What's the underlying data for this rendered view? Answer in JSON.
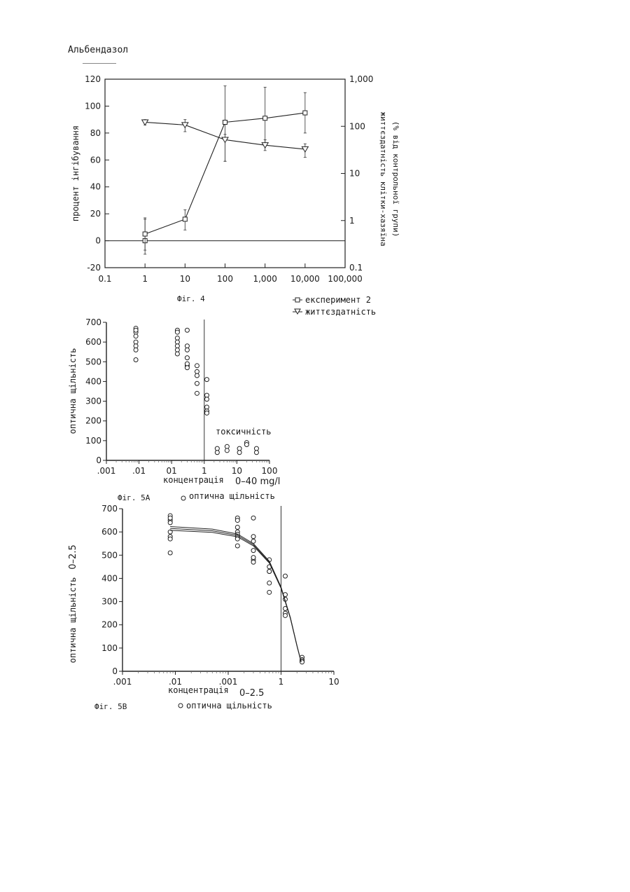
{
  "page_title": "Альбендазол",
  "chart_data": [
    {
      "type": "line",
      "caption": "Фіг. 4",
      "ylabel": "процент інгібування",
      "y2label_line1": "життєздатність клітки-хазяїна",
      "y2label_line2": "(% від контрольної групи)",
      "x_scale": "log",
      "xlim": [
        0.1,
        100000
      ],
      "x_ticks": [
        "0.1",
        "1",
        "10",
        "100",
        "1,000",
        "10,000",
        "100,000"
      ],
      "ylim": [
        -20,
        120
      ],
      "y_ticks": [
        "-20",
        "0",
        "20",
        "40",
        "60",
        "80",
        "100",
        "120"
      ],
      "y2_scale": "log",
      "y2lim": [
        0.1,
        1000
      ],
      "y2_ticks": [
        "0.1",
        "1",
        "10",
        "100",
        "1,000"
      ],
      "grid": false,
      "legend_position": "bottom-right",
      "series": [
        {
          "name": "експеримент 2",
          "marker": "square",
          "axis": "left",
          "x": [
            1,
            1,
            10,
            100,
            1000,
            10000
          ],
          "y": [
            0,
            5,
            16,
            88,
            91,
            95
          ],
          "err_low": [
            10,
            12,
            8,
            29,
            19,
            15
          ],
          "err_high": [
            16,
            12,
            7,
            27,
            23,
            15
          ]
        },
        {
          "name": "життєздатність",
          "marker": "triangle-down",
          "axis": "right",
          "x": [
            1,
            10,
            100,
            1000,
            10000
          ],
          "y": [
            110,
            95,
            46,
            32,
            27
          ],
          "y_left_equivalent": [
            88,
            86,
            75,
            71,
            68
          ],
          "err_low": [
            2,
            5,
            16,
            4,
            6
          ],
          "err_high": [
            2,
            4,
            4,
            4,
            4
          ]
        }
      ]
    },
    {
      "type": "scatter",
      "caption": "Фіг. 5А",
      "ylabel": "оптична щільність",
      "xlabel": "концентрація",
      "xlabel_range": "0–40 mg/l",
      "annotation": "токсичність",
      "x_scale": "log",
      "xlim": [
        0.001,
        100
      ],
      "x_ticks": [
        ".001",
        ".01",
        "01",
        "1",
        "10",
        "100"
      ],
      "ylim": [
        0,
        700
      ],
      "y_ticks": [
        "0",
        "100",
        "200",
        "300",
        "400",
        "500",
        "600",
        "700"
      ],
      "vertical_line_x": 1,
      "legend": "оптична щільність",
      "legend_position": "bottom",
      "series": [
        {
          "name": "оптична щільність",
          "marker": "circle",
          "x": [
            0.008,
            0.008,
            0.008,
            0.008,
            0.008,
            0.008,
            0.008,
            0.008,
            0.15,
            0.15,
            0.15,
            0.15,
            0.15,
            0.15,
            0.15,
            0.3,
            0.3,
            0.3,
            0.3,
            0.3,
            0.3,
            0.3,
            0.6,
            0.6,
            0.6,
            0.6,
            0.6,
            1.2,
            1.2,
            1.2,
            1.2,
            1.2,
            1.2,
            2.5,
            2.5,
            5,
            5,
            12,
            12,
            20,
            20,
            40,
            40
          ],
          "y": [
            670,
            650,
            630,
            600,
            580,
            560,
            510,
            660,
            660,
            650,
            620,
            600,
            580,
            560,
            540,
            660,
            580,
            560,
            520,
            480,
            490,
            470,
            480,
            450,
            430,
            390,
            340,
            410,
            330,
            310,
            270,
            250,
            240,
            60,
            40,
            70,
            50,
            60,
            40,
            90,
            80,
            60,
            40
          ]
        }
      ]
    },
    {
      "type": "scatter",
      "caption": "Фіг. 5В",
      "ylabel": "оптична щільність",
      "ylabel_range": "0–2.5",
      "xlabel": "концентрація",
      "xlabel_range": "0–2.5",
      "x_scale": "log",
      "xlim": [
        0.001,
        10
      ],
      "x_ticks": [
        ".001",
        ".01",
        ".001",
        "1",
        "10"
      ],
      "ylim": [
        0,
        700
      ],
      "y_ticks": [
        "0",
        "100",
        "200",
        "300",
        "400",
        "500",
        "600",
        "700"
      ],
      "vertical_line_x": 1,
      "legend": "оптична щільність",
      "legend_position": "bottom",
      "series": [
        {
          "name": "оптична щільність",
          "marker": "circle",
          "x": [
            0.008,
            0.008,
            0.008,
            0.008,
            0.008,
            0.008,
            0.008,
            0.008,
            0.15,
            0.15,
            0.15,
            0.15,
            0.15,
            0.15,
            0.15,
            0.15,
            0.3,
            0.3,
            0.3,
            0.3,
            0.3,
            0.3,
            0.3,
            0.6,
            0.6,
            0.6,
            0.6,
            0.6,
            0.6,
            1.2,
            1.2,
            1.2,
            1.2,
            1.2,
            1.2,
            2.5,
            2.5,
            2.5,
            2.5
          ],
          "y": [
            670,
            650,
            640,
            600,
            580,
            570,
            510,
            660,
            660,
            650,
            620,
            600,
            590,
            580,
            570,
            540,
            660,
            580,
            560,
            520,
            480,
            490,
            470,
            480,
            450,
            430,
            430,
            380,
            340,
            410,
            330,
            310,
            270,
            250,
            240,
            60,
            50,
            45,
            40
          ]
        },
        {
          "name": "fitted curves",
          "x": [
            0.008,
            0.05,
            0.15,
            0.3,
            0.6,
            1.0,
            1.5,
            2.0,
            2.4
          ],
          "y": [
            615,
            605,
            585,
            545,
            470,
            360,
            230,
            110,
            40
          ]
        }
      ]
    }
  ]
}
